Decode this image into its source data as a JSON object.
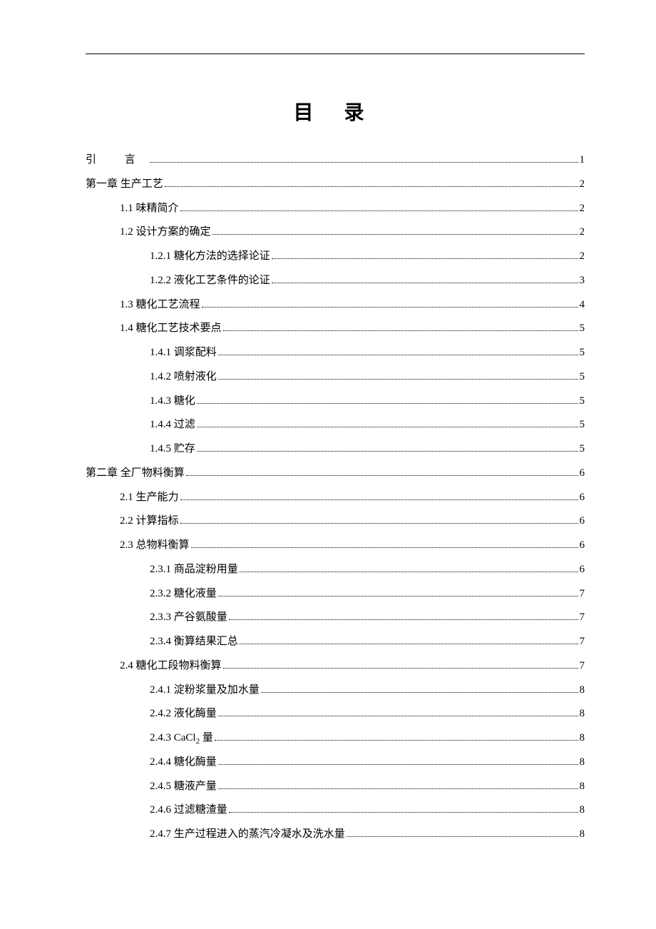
{
  "page": {
    "title": "目 录",
    "background_color": "#ffffff",
    "text_color": "#000000",
    "title_fontsize": 28,
    "body_fontsize": 15,
    "line_height": 2.25
  },
  "toc": [
    {
      "label": "引  言",
      "page": "1",
      "level": 0,
      "intro": true
    },
    {
      "label": "第一章  生产工艺",
      "page": "2",
      "level": 0
    },
    {
      "label": "1.1  味精简介",
      "page": "2",
      "level": 1
    },
    {
      "label": "1.2  设计方案的确定",
      "page": "2",
      "level": 1
    },
    {
      "label": "1.2.1  糖化方法的选择论证",
      "page": "2",
      "level": 2
    },
    {
      "label": "1.2.2  液化工艺条件的论证",
      "page": "3",
      "level": 2
    },
    {
      "label": "1.3  糖化工艺流程",
      "page": "4",
      "level": 1
    },
    {
      "label": "1.4  糖化工艺技术要点",
      "page": "5",
      "level": 1
    },
    {
      "label": "1.4.1  调浆配料",
      "page": "5",
      "level": 2
    },
    {
      "label": "1.4.2  喷射液化",
      "page": "5",
      "level": 2
    },
    {
      "label": "1.4.3  糖化",
      "page": "5",
      "level": 2
    },
    {
      "label": "1.4.4  过滤",
      "page": "5",
      "level": 2
    },
    {
      "label": "1.4.5  贮存",
      "page": "5",
      "level": 2
    },
    {
      "label": "第二章  全厂物料衡算",
      "page": "6",
      "level": 0
    },
    {
      "label": "2.1  生产能力",
      "page": "6",
      "level": 1
    },
    {
      "label": "2.2  计算指标",
      "page": "6",
      "level": 1
    },
    {
      "label": "2.3  总物料衡算",
      "page": "6",
      "level": 1
    },
    {
      "label": "2.3.1  商品淀粉用量",
      "page": "6",
      "level": 2
    },
    {
      "label": "2.3.2  糖化液量",
      "page": "7",
      "level": 2
    },
    {
      "label": "2.3.3  产谷氨酸量",
      "page": "7",
      "level": 2
    },
    {
      "label": "2.3.4  衡算结果汇总",
      "page": "7",
      "level": 2
    },
    {
      "label": "2.4  糖化工段物料衡算",
      "page": "7",
      "level": 1
    },
    {
      "label": "2.4.1  淀粉浆量及加水量",
      "page": "8",
      "level": 2
    },
    {
      "label": "2.4.2  液化酶量",
      "page": "8",
      "level": 2
    },
    {
      "label": "2.4.3  CaCl₂ 量",
      "page": "8",
      "level": 2,
      "html": "2.4.3  CaCl<sub>2</sub> 量"
    },
    {
      "label": "2.4.4  糖化酶量",
      "page": "8",
      "level": 2
    },
    {
      "label": "2.4.5  糖液产量",
      "page": "8",
      "level": 2
    },
    {
      "label": "2.4.6  过滤糖渣量",
      "page": "8",
      "level": 2
    },
    {
      "label": "2.4.7  生产过程进入的蒸汽冷凝水及洗水量",
      "page": "8",
      "level": 2
    }
  ]
}
